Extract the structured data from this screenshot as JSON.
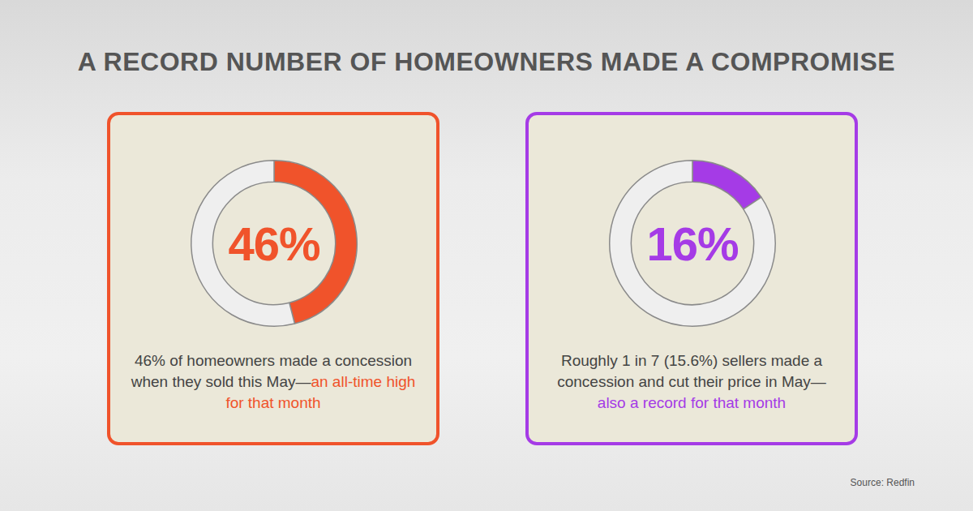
{
  "title": "A RECORD NUMBER OF HOMEOWNERS MADE A COMPROMISE",
  "source": "Source: Redfin",
  "chart_data": [
    {
      "type": "doughnut",
      "values": [
        46
      ],
      "value_labels": [
        "46%"
      ],
      "ylim": [
        0,
        100
      ],
      "color": "#f0532b",
      "data_labels": true,
      "caption": "46% of homeowners made a concession when they sold this May—",
      "highlight": "an all-time high for that month"
    },
    {
      "type": "doughnut",
      "values": [
        15.6
      ],
      "value_labels": [
        "16%"
      ],
      "ylim": [
        0,
        100
      ],
      "color": "#a53be6",
      "data_labels": true,
      "caption": "Roughly 1 in 7 (15.6%) sellers made a concession and cut their price in May—",
      "highlight": "also a record for that month"
    }
  ]
}
